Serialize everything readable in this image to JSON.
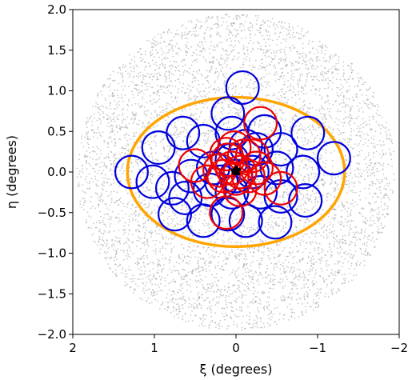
{
  "chart_data": {
    "type": "scatter",
    "title": "",
    "xlabel": "ξ (degrees)",
    "ylabel": "η (degrees)",
    "xlim": [
      2.0,
      -2.0
    ],
    "ylim": [
      -2.0,
      2.0
    ],
    "xticks": [
      2,
      1,
      0,
      -1,
      -2
    ],
    "xtick_labels": [
      "2",
      "1",
      "0",
      "−1",
      "−2"
    ],
    "yticks": [
      2.0,
      1.5,
      1.0,
      0.5,
      0.0,
      -0.5,
      -1.0,
      -1.5,
      -2.0
    ],
    "ytick_labels": [
      "2.0",
      "1.5",
      "1.0",
      "0.5",
      "0.0",
      "−0.5",
      "−1.0",
      "−1.5",
      "−2.0"
    ],
    "grid": false,
    "colors": {
      "background_points": "#9a9a9a",
      "ellipse": "#ffa500",
      "blue_circles": "#0000dd",
      "red_circles": "#ee0000",
      "center_points": "#000000"
    },
    "background_field": {
      "shape": "disk",
      "center": [
        0.0,
        0.0
      ],
      "radius": 1.95,
      "point_count": 6000
    },
    "ellipse": {
      "center": [
        0.0,
        0.0
      ],
      "semi_major_x": 1.33,
      "semi_minor_y": 0.92
    },
    "blue_circles": {
      "radius": 0.2,
      "centers": [
        [
          -0.08,
          1.04
        ],
        [
          0.1,
          0.72
        ],
        [
          -0.35,
          0.5
        ],
        [
          -0.88,
          0.48
        ],
        [
          -1.2,
          0.17
        ],
        [
          1.28,
          0.0
        ],
        [
          0.95,
          0.3
        ],
        [
          0.65,
          0.48
        ],
        [
          0.4,
          0.38
        ],
        [
          0.05,
          0.48
        ],
        [
          -0.25,
          0.28
        ],
        [
          -0.55,
          0.28
        ],
        [
          1.02,
          -0.12
        ],
        [
          0.78,
          -0.2
        ],
        [
          0.55,
          -0.05
        ],
        [
          0.28,
          0.05
        ],
        [
          0.05,
          0.15
        ],
        [
          -0.2,
          0.0
        ],
        [
          -0.5,
          0.05
        ],
        [
          -0.82,
          0.0
        ],
        [
          0.62,
          -0.32
        ],
        [
          0.32,
          -0.22
        ],
        [
          0.05,
          -0.25
        ],
        [
          -0.3,
          -0.25
        ],
        [
          -0.55,
          -0.3
        ],
        [
          -0.85,
          -0.35
        ],
        [
          0.75,
          -0.52
        ],
        [
          0.4,
          -0.6
        ],
        [
          0.1,
          -0.52
        ],
        [
          -0.12,
          -0.6
        ],
        [
          -0.48,
          -0.62
        ],
        [
          0.0,
          -0.05
        ],
        [
          0.18,
          -0.12
        ],
        [
          -0.12,
          0.32
        ]
      ]
    },
    "red_circles": {
      "radius": 0.2,
      "centers": [
        [
          -0.3,
          0.6
        ],
        [
          0.1,
          0.15
        ],
        [
          -0.1,
          0.2
        ],
        [
          0.05,
          0.05
        ],
        [
          -0.05,
          0.0
        ],
        [
          0.0,
          -0.08
        ],
        [
          0.15,
          -0.05
        ],
        [
          -0.15,
          -0.05
        ],
        [
          0.12,
          0.22
        ],
        [
          -0.25,
          0.05
        ],
        [
          0.5,
          0.08
        ],
        [
          -0.35,
          -0.08
        ],
        [
          0.35,
          -0.12
        ],
        [
          -0.55,
          -0.2
        ],
        [
          0.12,
          -0.5
        ],
        [
          0.2,
          0.02
        ],
        [
          -0.05,
          -0.22
        ],
        [
          -0.2,
          0.2
        ],
        [
          0.02,
          0.3
        ]
      ]
    },
    "center_points": [
      [
        0.0,
        0.0
      ],
      [
        0.02,
        0.03
      ],
      [
        -0.02,
        0.01
      ],
      [
        0.01,
        -0.02
      ],
      [
        -0.01,
        0.04
      ],
      [
        0.03,
        -0.01
      ],
      [
        -0.03,
        -0.02
      ],
      [
        0.0,
        0.06
      ],
      [
        0.04,
        0.02
      ],
      [
        -0.04,
        0.03
      ]
    ]
  }
}
